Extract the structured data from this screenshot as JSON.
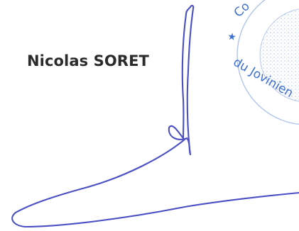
{
  "document": {
    "signer_name": "Nicolas SORET"
  },
  "stamp": {
    "arc_text_top": "Co",
    "arc_text_bottom": "du Jovinien",
    "star_glyph": "★",
    "ink_color": "#3f6fd0"
  },
  "signature": {
    "ink_color": "#4a4fc4"
  }
}
